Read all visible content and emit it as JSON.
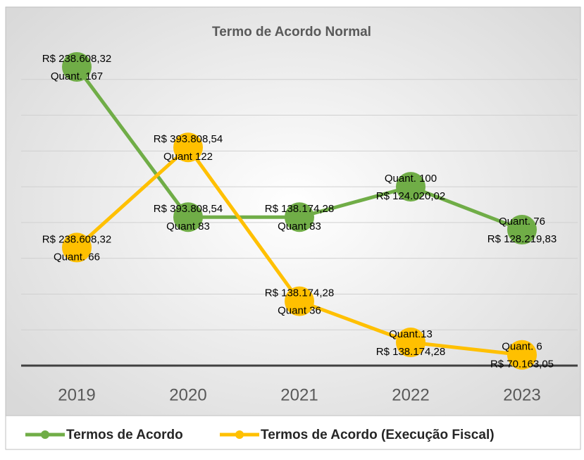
{
  "chart_data": {
    "type": "line",
    "title": "Termo de Acordo Normal",
    "categories": [
      "2019",
      "2020",
      "2021",
      "2022",
      "2023"
    ],
    "series": [
      {
        "name": "Termos de Acordo",
        "color": "#70ad47",
        "values": [
          167,
          83,
          83,
          100,
          76
        ],
        "value_labels": [
          "Quant. 167",
          "Quant 83",
          "Quant 83",
          "Quant. 100",
          "Quant. 76"
        ],
        "amount_labels": [
          "R$ 238.608,32",
          "R$ 393.808,54",
          "R$ 138.174,28",
          "R$ 124.020,02",
          "R$ 128.219,83"
        ]
      },
      {
        "name": "Termos de Acordo (Execução  Fiscal)",
        "color": "#ffc000",
        "values": [
          66,
          122,
          36,
          13,
          6
        ],
        "value_labels": [
          "Quant. 66",
          "Quant 122",
          "Quant 36",
          "Quant.13",
          "Quant. 6"
        ],
        "amount_labels": [
          "R$ 238.608,32",
          "R$ 393.808,54",
          "R$ 138.174,28",
          "R$ 138.174,28",
          "R$ 70.163,05"
        ]
      }
    ],
    "ylim": [
      0,
      180
    ],
    "yticks": [
      0,
      20,
      40,
      60,
      80,
      100,
      120,
      140,
      160
    ],
    "grid": true
  }
}
